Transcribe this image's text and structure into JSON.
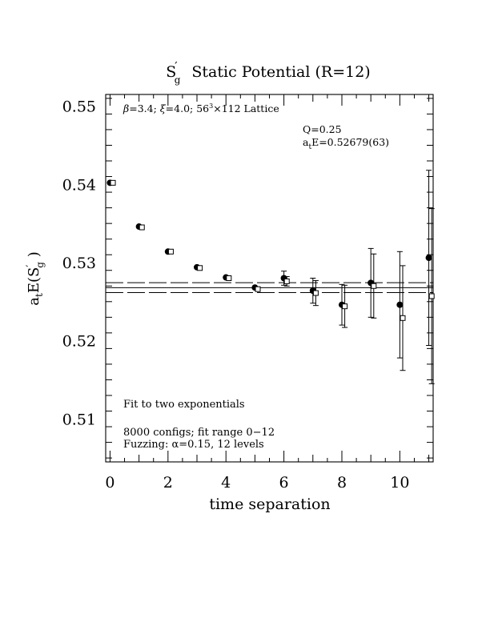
{
  "chart_data": {
    "type": "scatter",
    "title": "S′g  Static Potential (R=12)",
    "xlabel": "time separation",
    "ylabel": "atE(S′g)",
    "xlim": [
      -0.15,
      11.15
    ],
    "ylim": [
      0.5045,
      0.5515
    ],
    "x_ticks": [
      0,
      2,
      4,
      6,
      8,
      10
    ],
    "y_ticks": [
      0.51,
      0.52,
      0.53,
      0.54,
      0.55
    ],
    "x_tick_labels": [
      "0",
      "2",
      "4",
      "6",
      "8",
      "10"
    ],
    "y_tick_labels": [
      "0.51",
      "0.52",
      "0.53",
      "0.54",
      "0.55"
    ],
    "annotations": {
      "lattice": "β=3.4; ξ=4.0; 56³×112 Lattice",
      "q": "Q=0.25",
      "energy": "atE=0.52679(63)",
      "fit": "Fit to two exponentials",
      "configs": "8000 configs; fit range 0−12",
      "fuzzing": "Fuzzing: α=0.15, 12 levels"
    },
    "fit_band": {
      "center": 0.52679,
      "lower": 0.52616,
      "upper": 0.52742
    },
    "series": [
      {
        "marker": "filled-circle",
        "x": [
          0,
          1,
          2,
          3,
          4,
          5,
          6,
          7,
          8,
          9,
          10,
          11
        ],
        "y": [
          0.5402,
          0.5346,
          0.5314,
          0.5294,
          0.5281,
          0.5268,
          0.528,
          0.5264,
          0.5246,
          0.5274,
          0.5246,
          0.5306
        ],
        "err": [
          5e-05,
          5e-05,
          5e-05,
          5e-05,
          7e-05,
          0.00012,
          0.0009,
          0.0016,
          0.0026,
          0.0044,
          0.0068,
          0.0112
        ]
      },
      {
        "marker": "open-square",
        "x": [
          0.1,
          1.1,
          2.1,
          3.1,
          4.1,
          5.1,
          6.1,
          7.1,
          8.1,
          9.1,
          10.1,
          11.1
        ],
        "y": [
          0.5402,
          0.5345,
          0.5314,
          0.5293,
          0.528,
          0.5266,
          0.5276,
          0.5261,
          0.5244,
          0.527,
          0.5229,
          0.5257
        ],
        "err": [
          5e-05,
          5e-05,
          5e-05,
          5e-05,
          8e-05,
          0.00015,
          0.0006,
          0.0016,
          0.0027,
          0.0041,
          0.0067,
          0.0112
        ]
      }
    ]
  }
}
